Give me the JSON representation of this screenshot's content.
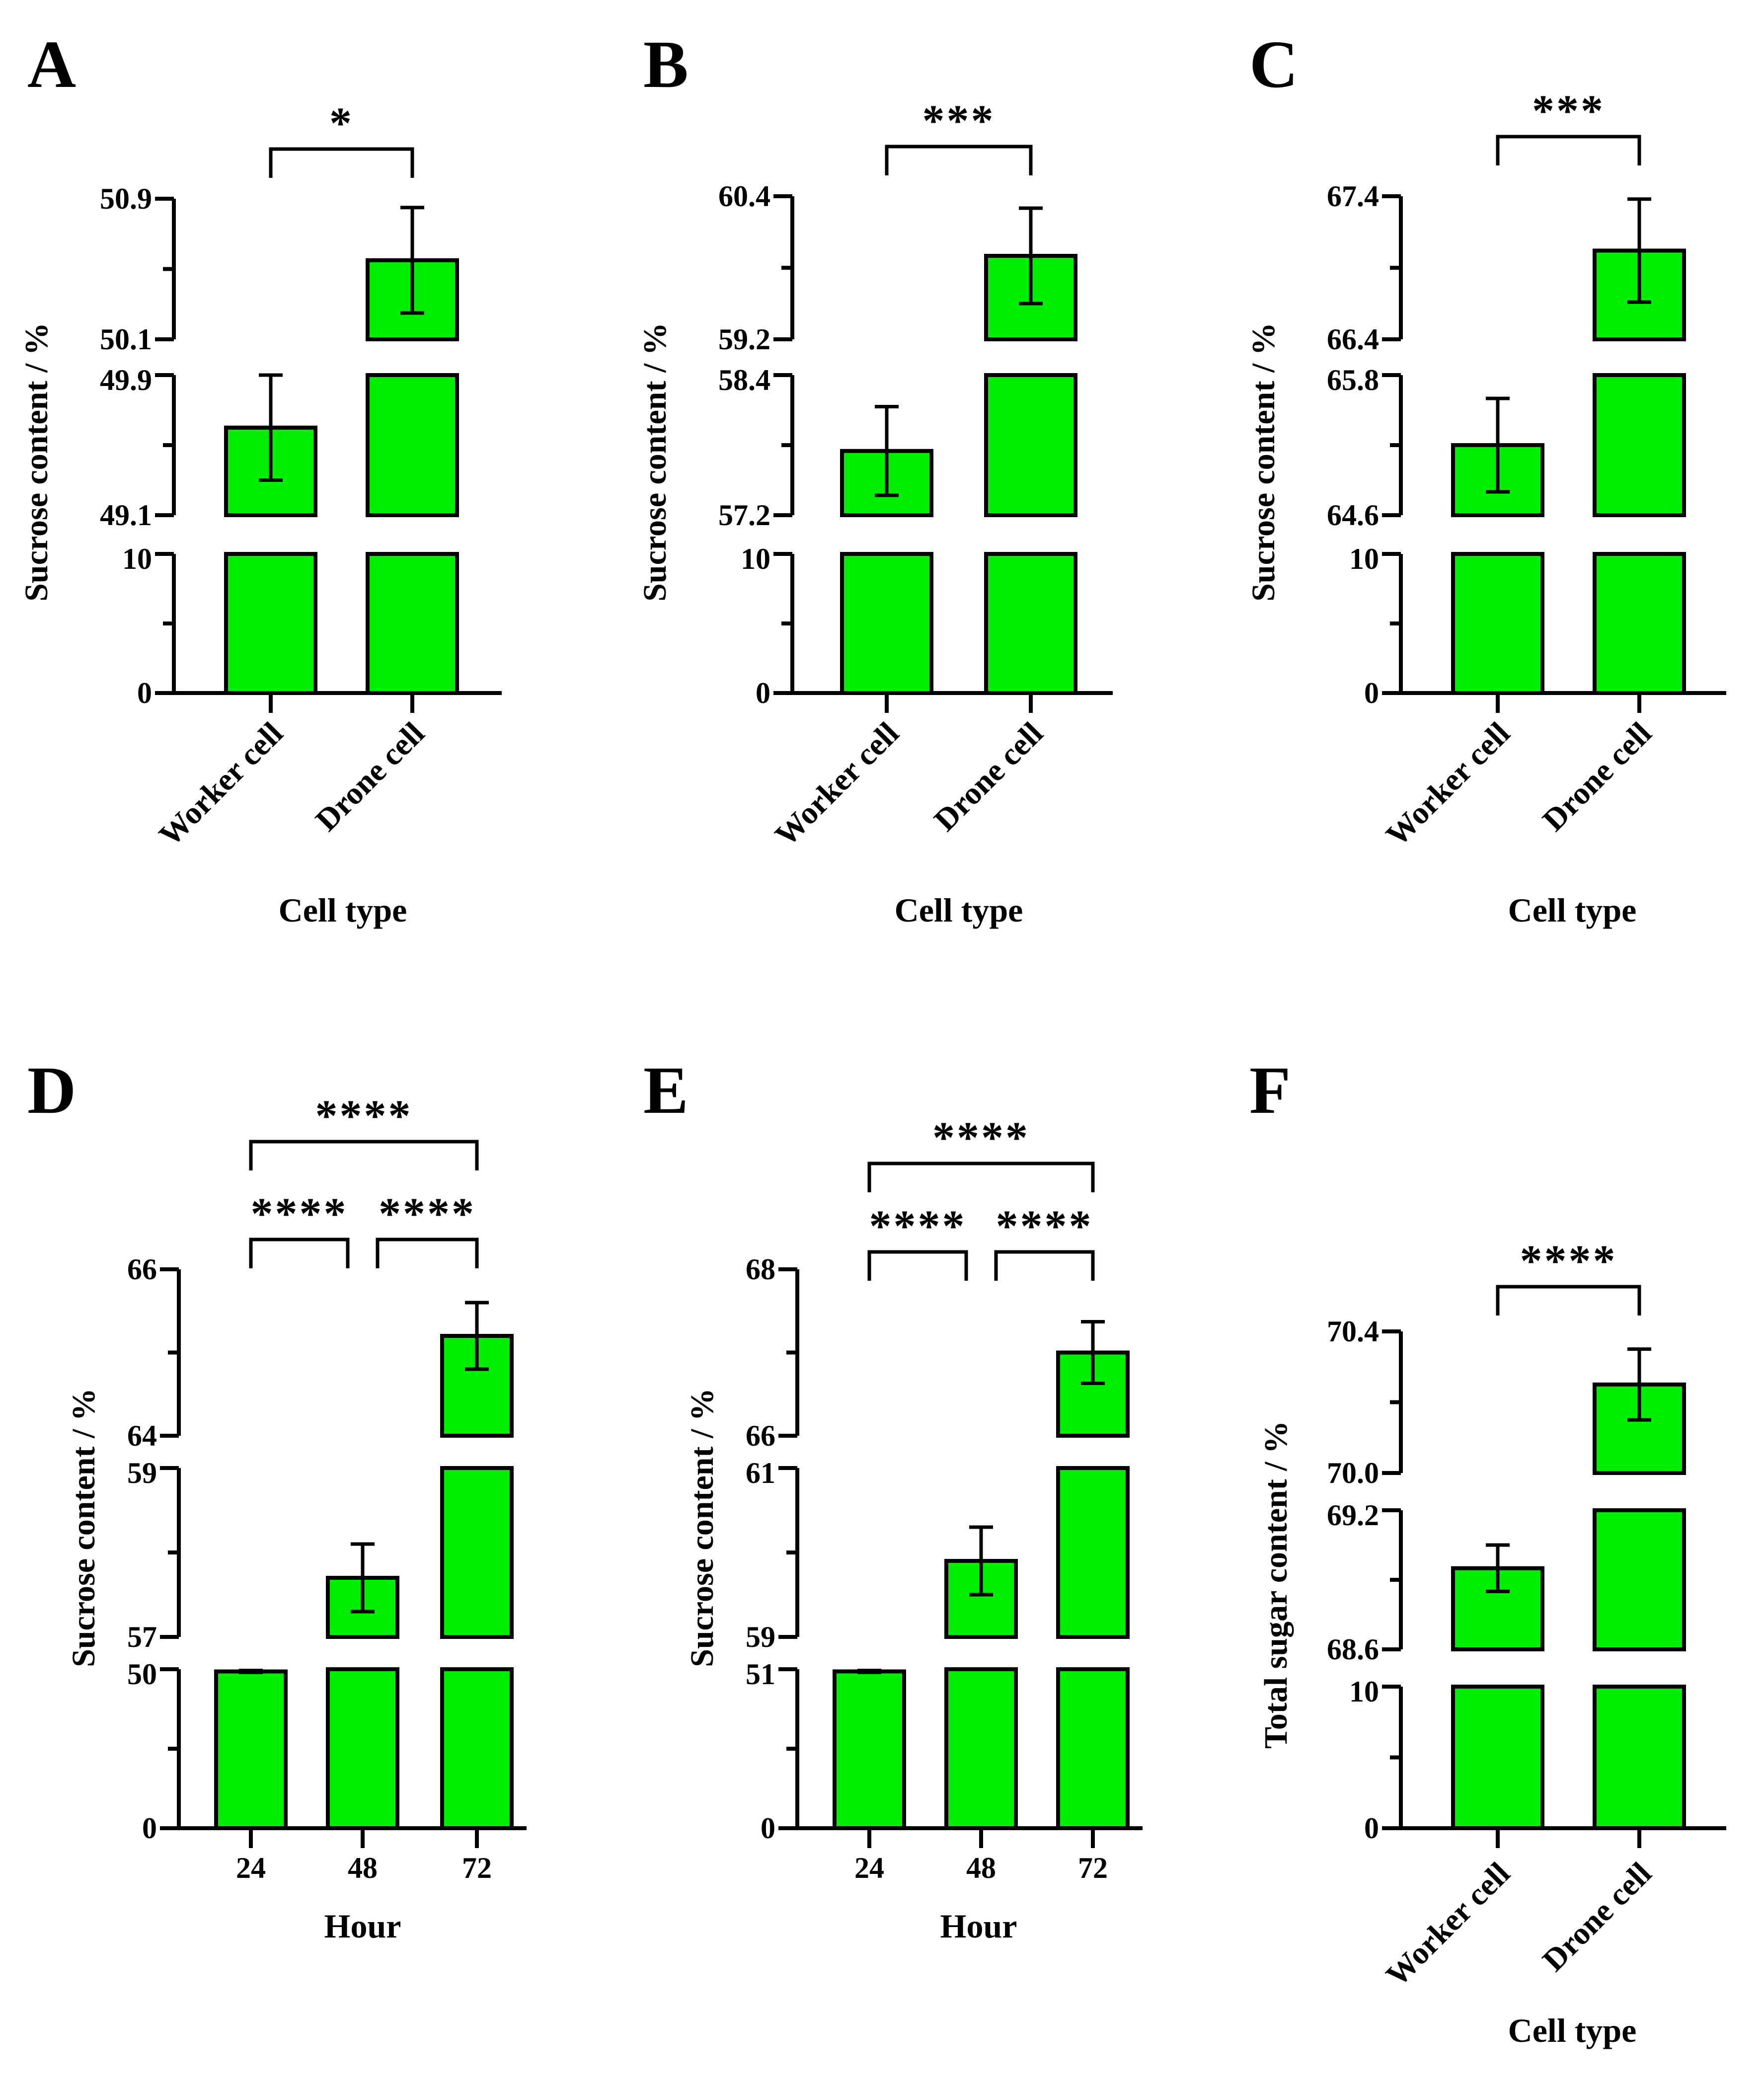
{
  "colors": {
    "bar": "#00ee00",
    "stroke": "#000000",
    "background": "#ffffff"
  },
  "chart_data": [
    {
      "panel": "A",
      "type": "bar",
      "categories": [
        "Worker cell",
        "Drone cell"
      ],
      "xlabel": "Cell type",
      "ylabel": "Sucrose content / %",
      "segments": [
        [
          0,
          10
        ],
        [
          49.1,
          49.9
        ],
        [
          50.1,
          50.9
        ]
      ],
      "yticks": [
        [
          "0",
          "10"
        ],
        [
          "49.1",
          "49.9"
        ],
        [
          "50.1",
          "50.9"
        ]
      ],
      "values": [
        49.6,
        50.55
      ],
      "errors": [
        0.3,
        0.3
      ],
      "significance": [
        {
          "from": 0,
          "to": 1,
          "label": "*"
        }
      ]
    },
    {
      "panel": "B",
      "type": "bar",
      "categories": [
        "Worker cell",
        "Drone cell"
      ],
      "xlabel": "Cell type",
      "ylabel": "Sucrose content / %",
      "segments": [
        [
          0,
          10
        ],
        [
          57.2,
          58.4
        ],
        [
          59.2,
          60.4
        ]
      ],
      "yticks": [
        [
          "0",
          "10"
        ],
        [
          "57.2",
          "58.4"
        ],
        [
          "59.2",
          "60.4"
        ]
      ],
      "values": [
        57.75,
        59.9
      ],
      "errors": [
        0.38,
        0.4
      ],
      "significance": [
        {
          "from": 0,
          "to": 1,
          "label": "***"
        }
      ]
    },
    {
      "panel": "C",
      "type": "bar",
      "categories": [
        "Worker cell",
        "Drone cell"
      ],
      "xlabel": "Cell type",
      "ylabel": "Sucrose content / %",
      "segments": [
        [
          0,
          10
        ],
        [
          64.6,
          65.8
        ],
        [
          66.4,
          67.4
        ]
      ],
      "yticks": [
        [
          "0",
          "10"
        ],
        [
          "64.6",
          "65.8"
        ],
        [
          "66.4",
          "67.4"
        ]
      ],
      "values": [
        65.2,
        67.02
      ],
      "errors": [
        0.4,
        0.36
      ],
      "significance": [
        {
          "from": 0,
          "to": 1,
          "label": "***"
        }
      ]
    },
    {
      "panel": "D",
      "type": "bar",
      "categories": [
        "24",
        "48",
        "72"
      ],
      "xlabel": "Hour",
      "ylabel": "Sucrose content / %",
      "segments": [
        [
          0,
          50
        ],
        [
          57,
          59
        ],
        [
          64,
          66
        ]
      ],
      "yticks": [
        [
          "0",
          "50"
        ],
        [
          "57",
          "59"
        ],
        [
          "64",
          "66"
        ]
      ],
      "values": [
        49.3,
        57.7,
        65.2
      ],
      "errors": [
        0.3,
        0.4,
        0.4
      ],
      "significance": [
        {
          "from": 0,
          "to": 1,
          "label": "****"
        },
        {
          "from": 1,
          "to": 2,
          "label": "****"
        },
        {
          "from": 0,
          "to": 2,
          "label": "****"
        }
      ]
    },
    {
      "panel": "E",
      "type": "bar",
      "categories": [
        "24",
        "48",
        "72"
      ],
      "xlabel": "Hour",
      "ylabel": "Sucrose content / %",
      "segments": [
        [
          0,
          51
        ],
        [
          59,
          61
        ],
        [
          66,
          68
        ]
      ],
      "yticks": [
        [
          "0",
          "51"
        ],
        [
          "59",
          "61"
        ],
        [
          "66",
          "68"
        ]
      ],
      "values": [
        50.3,
        59.9,
        67.0
      ],
      "errors": [
        0.3,
        0.4,
        0.37
      ],
      "significance": [
        {
          "from": 0,
          "to": 1,
          "label": "****"
        },
        {
          "from": 1,
          "to": 2,
          "label": "****"
        },
        {
          "from": 0,
          "to": 2,
          "label": "****"
        }
      ]
    },
    {
      "panel": "F",
      "type": "bar",
      "categories": [
        "Worker cell",
        "Drone cell"
      ],
      "xlabel": "Cell type",
      "ylabel": "Total sugar content / %",
      "segments": [
        [
          0,
          10
        ],
        [
          68.6,
          69.2
        ],
        [
          70.0,
          70.4
        ]
      ],
      "yticks": [
        [
          "0",
          "10"
        ],
        [
          "68.6",
          "69.2"
        ],
        [
          "70.0",
          "70.4"
        ]
      ],
      "values": [
        68.95,
        70.25
      ],
      "errors": [
        0.1,
        0.1
      ],
      "significance": [
        {
          "from": 0,
          "to": 1,
          "label": "****"
        }
      ]
    }
  ]
}
